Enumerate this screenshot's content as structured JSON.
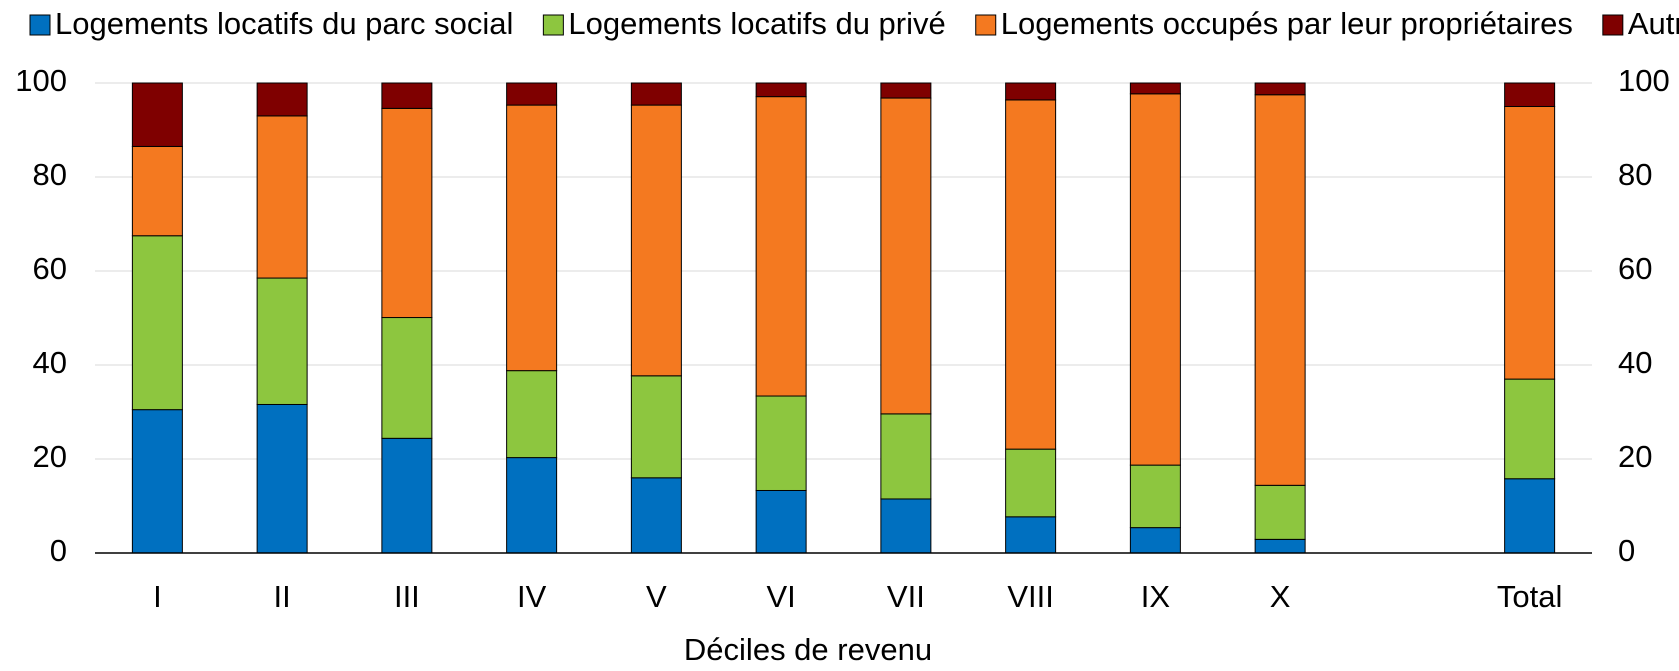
{
  "chart_data": {
    "type": "stacked_bar",
    "x_label": "Déciles de revenu",
    "categories": [
      "I",
      "II",
      "III",
      "IV",
      "V",
      "VI",
      "VII",
      "VIII",
      "IX",
      "X",
      null,
      "Total"
    ],
    "series": [
      {
        "name": "Logements locatifs du parc social",
        "color": "#0070c0",
        "values": [
          30.5,
          31.6,
          24.4,
          20.3,
          16,
          13.3,
          11.5,
          7.7,
          5.4,
          2.9,
          null,
          15.8
        ]
      },
      {
        "name": "Logements locatifs du privé",
        "color": "#8dc63f",
        "values": [
          37,
          26.9,
          25.7,
          18.5,
          21.7,
          20.1,
          18.1,
          14.4,
          13.3,
          11.5,
          null,
          21.2
        ]
      },
      {
        "name": "Logements occupés par leur propriétaires",
        "color": "#f47920",
        "values": [
          19,
          34.5,
          44.5,
          56.5,
          57.6,
          63.7,
          67.2,
          74.3,
          79,
          83.1,
          null,
          58
        ]
      },
      {
        "name": "Autres",
        "color": "#7f0000",
        "values": [
          13.5,
          7,
          5.4,
          4.7,
          4.7,
          2.9,
          3.2,
          3.6,
          2.3,
          2.5,
          null,
          5
        ]
      }
    ],
    "ylim": [
      0,
      100
    ],
    "yticks": [
      0,
      20,
      40,
      60,
      80,
      100
    ],
    "grid": true
  }
}
